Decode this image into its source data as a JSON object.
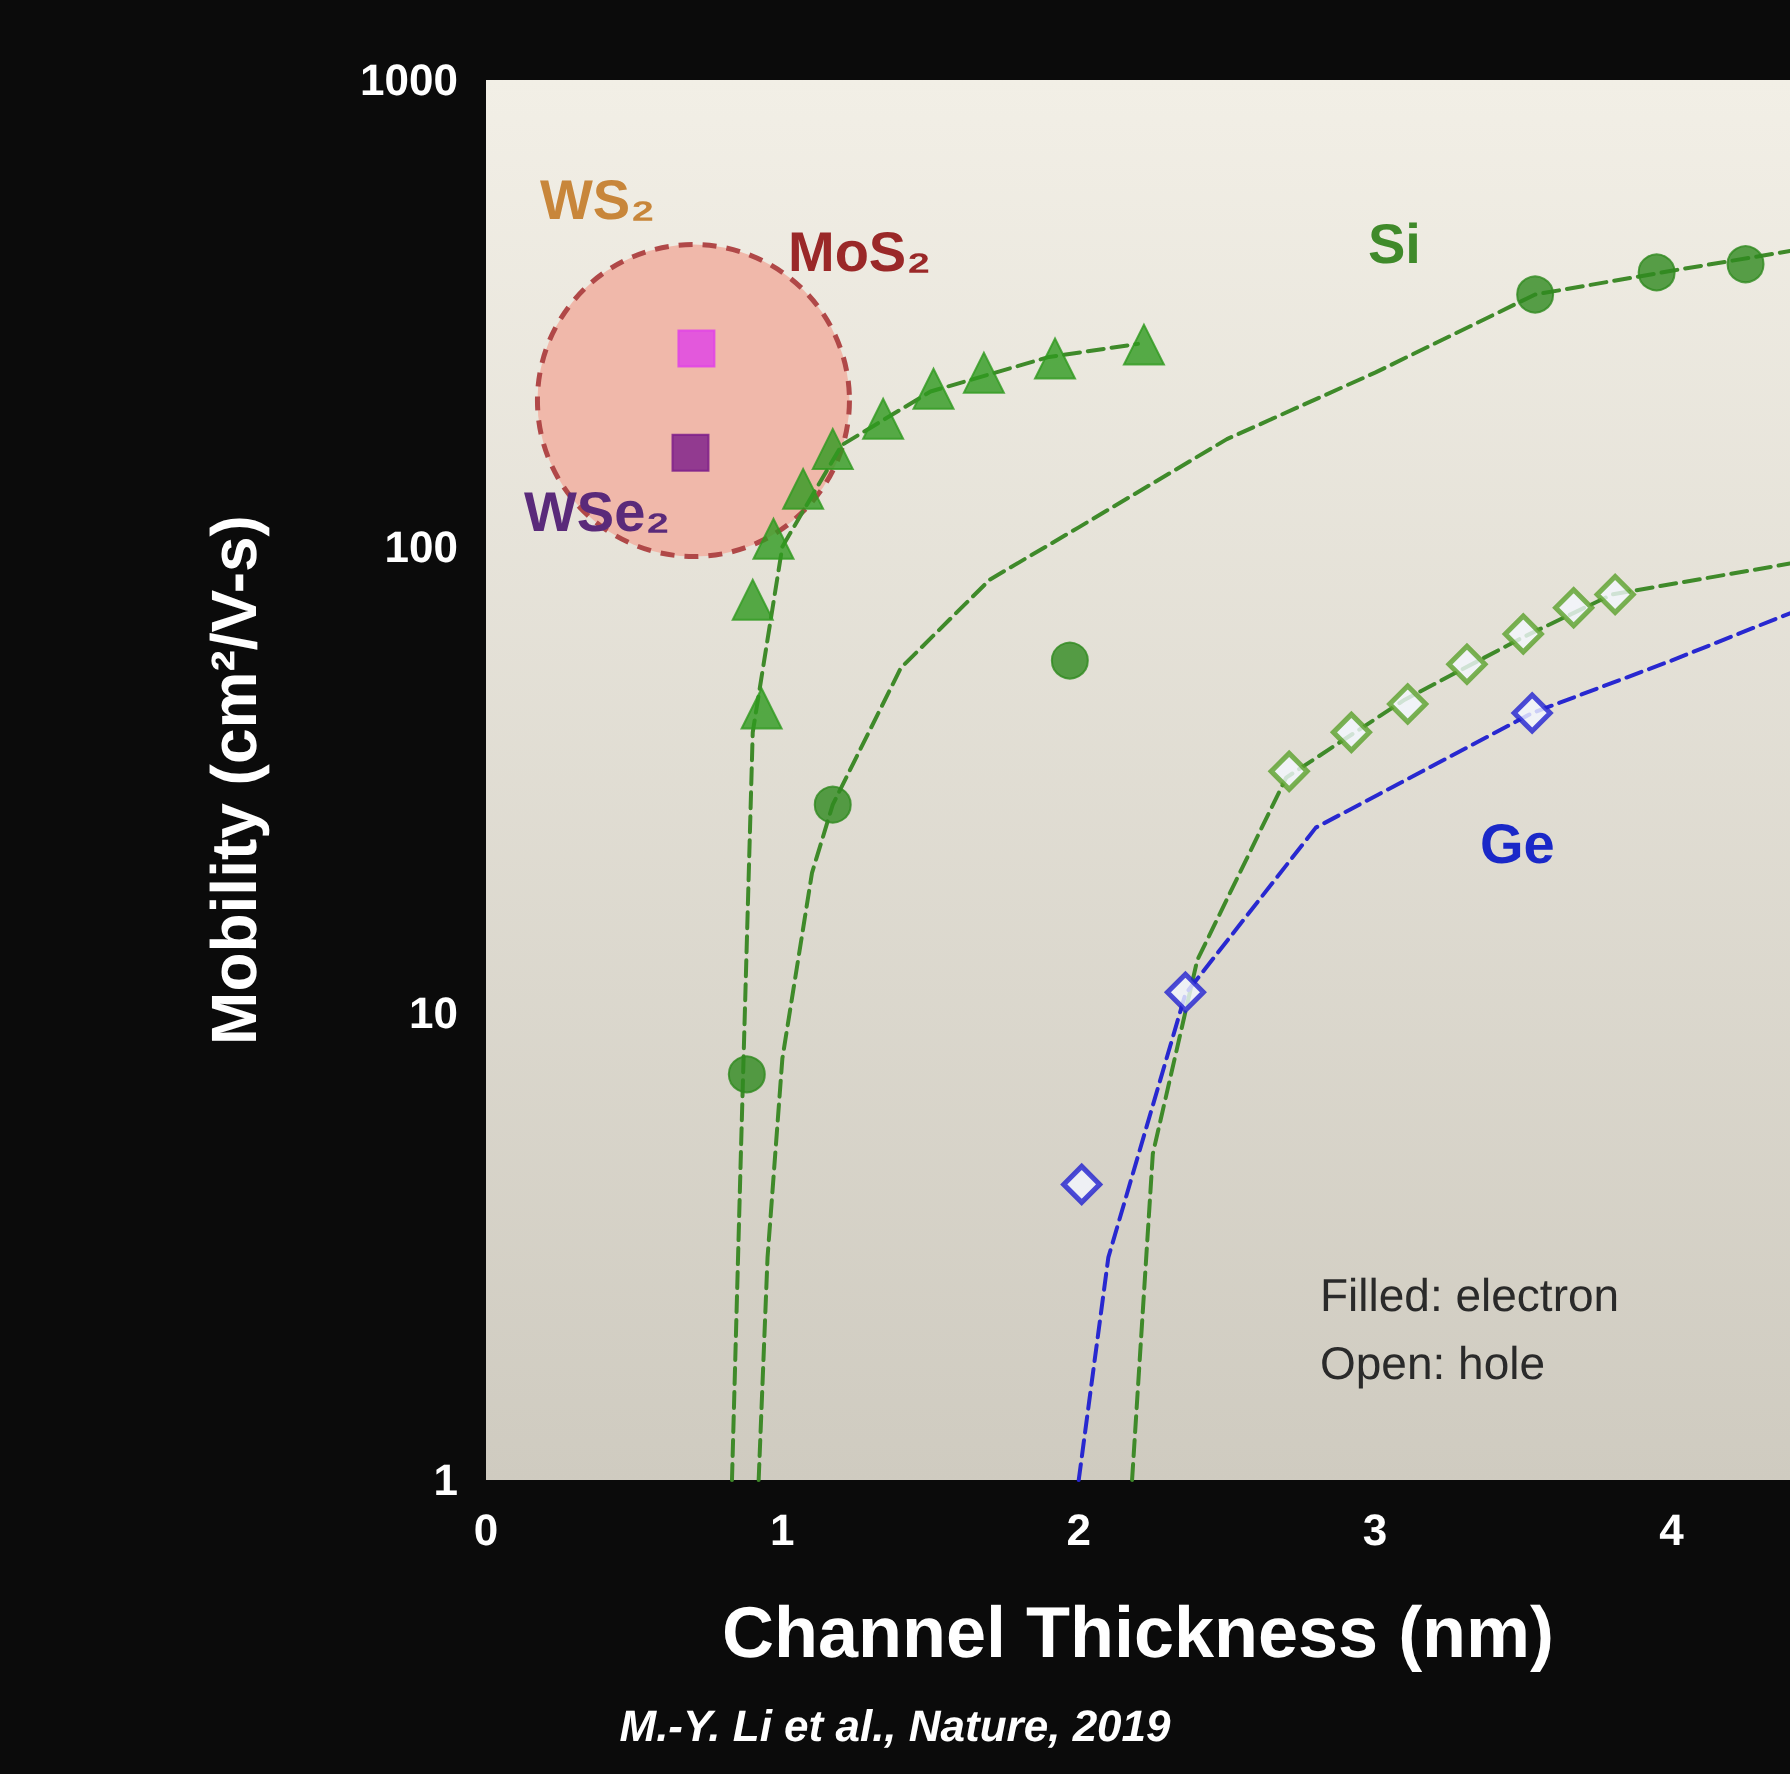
{
  "chart_data": {
    "type": "scatter",
    "xlabel": "Channel Thickness (nm)",
    "ylabel": "Mobility (cm²/V-s)",
    "xlim": [
      0,
      4.4
    ],
    "xticks": [
      0,
      1,
      2,
      3,
      4
    ],
    "ylim": [
      1,
      1000
    ],
    "yticks": [
      1,
      10,
      100,
      1000
    ],
    "log": "y",
    "grid": false,
    "series": [
      {
        "type": "line",
        "marker": "none",
        "line_style": "dashed",
        "color": "#3f8a2a",
        "x": [
          0.83,
          0.86,
          0.9,
          1.0,
          1.2,
          1.5,
          1.9,
          2.2
        ],
        "values": [
          1,
          5,
          40,
          100,
          165,
          215,
          255,
          272
        ]
      },
      {
        "type": "line",
        "marker": "none",
        "line_style": "dashed",
        "color": "#3f8a2a",
        "x": [
          0.92,
          0.95,
          1.0,
          1.1,
          1.17,
          1.4,
          1.7,
          2.0,
          2.5,
          3.0,
          3.54,
          4.0,
          4.4
        ],
        "values": [
          1,
          3,
          8,
          20,
          28,
          55,
          85,
          110,
          170,
          236,
          347,
          390,
          430
        ]
      },
      {
        "type": "line",
        "marker": "none",
        "line_style": "dashed",
        "color": "#3f8a2a",
        "x": [
          2.18,
          2.25,
          2.4,
          2.7,
          3.1,
          3.5,
          3.8,
          4.4
        ],
        "values": [
          1,
          5,
          13,
          32,
          47,
          64,
          79,
          92
        ]
      },
      {
        "type": "line",
        "marker": "none",
        "line_style": "dashed",
        "color": "#2828d0",
        "x": [
          2.0,
          2.1,
          2.36,
          2.8,
          3.53,
          4.0,
          4.4
        ],
        "values": [
          1,
          3,
          11,
          25,
          44,
          57,
          72
        ]
      },
      {
        "marker": "triangle",
        "color": "#2f9a1f",
        "x": [
          0.93,
          0.9,
          0.97,
          1.07,
          1.17,
          1.34,
          1.51,
          1.68,
          1.92,
          2.22
        ],
        "values": [
          45,
          77,
          104,
          133,
          162,
          188,
          218,
          236,
          253,
          271
        ]
      },
      {
        "marker": "circle",
        "color": "#2f8a1f",
        "x": [
          0.88,
          1.17,
          1.97,
          3.54,
          3.95,
          4.25
        ],
        "values": [
          7.4,
          28,
          57,
          347,
          387,
          403
        ]
      },
      {
        "marker": "diamond",
        "color": "#5aa02a",
        "x": [
          2.71,
          2.92,
          3.11,
          3.31,
          3.5,
          3.67,
          3.81
        ],
        "values": [
          33,
          40,
          46,
          56,
          65,
          74,
          79
        ]
      },
      {
        "marker": "diamond",
        "color": "#2020d0",
        "x": [
          2.01,
          2.36,
          3.53
        ],
        "values": [
          4.3,
          11.1,
          44
        ]
      },
      {
        "marker": "square",
        "colors": [
          "#e040e8",
          "#7a1a8a"
        ],
        "x": [
          0.71,
          0.69
        ],
        "values": [
          266,
          159
        ]
      }
    ],
    "annotations": [
      "WS₂",
      "MoS₂",
      "WSe₂",
      "Si",
      "Ge",
      "Filled: electron",
      "Open: hole",
      "M.-Y. Li et al., Nature, 2019"
    ]
  }
}
